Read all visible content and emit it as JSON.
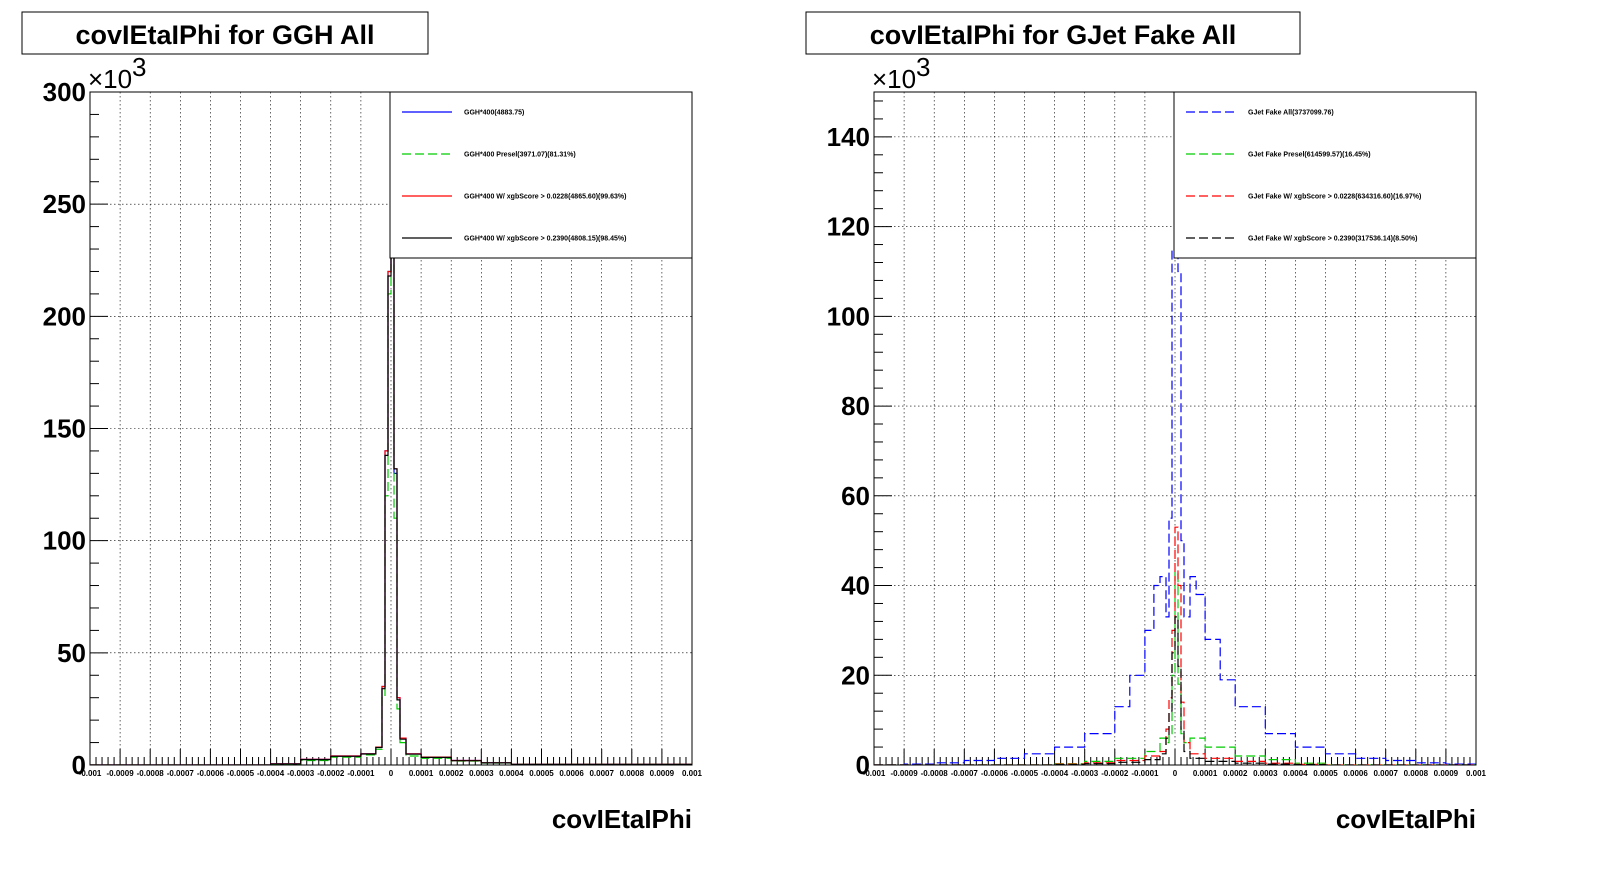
{
  "chart_data": [
    {
      "type": "line",
      "title": "covIEtaIPhi for GGH All",
      "xlabel": "covIEtaIPhi",
      "ylabel": "",
      "y_multiplier": "×10",
      "y_exponent": "3",
      "xlim": [
        -0.001,
        0.001
      ],
      "ylim": [
        0,
        300000
      ],
      "grid": true,
      "legend_position": "top-right",
      "xticks": [
        "-0.001",
        "-0.0009",
        "-0.0008",
        "-0.0007",
        "-0.0006",
        "-0.0005",
        "-0.0004",
        "-0.0003",
        "-0.0002",
        "-0.0001",
        "0",
        "0.0001",
        "0.0002",
        "0.0003",
        "0.0004",
        "0.0005",
        "0.0006",
        "0.0007",
        "0.0008",
        "0.0009",
        "0.001"
      ],
      "yticks": [
        {
          "label": "0",
          "value": 0
        },
        {
          "label": "50",
          "value": 50000
        },
        {
          "label": "100",
          "value": 100000
        },
        {
          "label": "150",
          "value": 150000
        },
        {
          "label": "200",
          "value": 200000
        },
        {
          "label": "250",
          "value": 250000
        },
        {
          "label": "300",
          "value": 300000
        }
      ],
      "series": [
        {
          "name": "GGH*400(4883.75)",
          "color": "#0000ff",
          "dashed": false,
          "x": [
            -0.001,
            -0.0005,
            -0.0004,
            -0.0003,
            -0.0002,
            -0.0001,
            -5e-05,
            -3e-05,
            -2e-05,
            -1e-05,
            0,
            1e-05,
            2e-05,
            3e-05,
            5e-05,
            0.0001,
            0.0002,
            0.0003,
            0.0004,
            0.001
          ],
          "y": [
            0,
            0,
            500,
            2500,
            4000,
            5000,
            8000,
            35000,
            140000,
            220000,
            290000,
            130000,
            30000,
            12000,
            5000,
            3500,
            2000,
            1000,
            300,
            0
          ]
        },
        {
          "name": "GGH*400 Presel(3971.07)(81.31%)",
          "color": "#00cc00",
          "dashed": true,
          "x": [
            -0.001,
            -0.0005,
            -0.0004,
            -0.0003,
            -0.0002,
            -0.0001,
            -5e-05,
            -3e-05,
            -2e-05,
            -1e-05,
            0,
            1e-05,
            2e-05,
            3e-05,
            5e-05,
            0.0001,
            0.0002,
            0.0003,
            0.0004,
            0.001
          ],
          "y": [
            0,
            0,
            400,
            2000,
            3500,
            4500,
            7000,
            30000,
            120000,
            210000,
            235000,
            110000,
            25000,
            10000,
            4000,
            3000,
            1800,
            900,
            250,
            0
          ]
        },
        {
          "name": "GGH*400 W/ xgbScore > 0.0228(4865.60)(99.63%)",
          "color": "#ff0000",
          "dashed": false,
          "x": [
            -0.001,
            -0.0005,
            -0.0004,
            -0.0003,
            -0.0002,
            -0.0001,
            -5e-05,
            -3e-05,
            -2e-05,
            -1e-05,
            0,
            1e-05,
            2e-05,
            3e-05,
            5e-05,
            0.0001,
            0.0002,
            0.0003,
            0.0004,
            0.001
          ],
          "y": [
            0,
            0,
            500,
            2500,
            4000,
            5000,
            8000,
            35000,
            140000,
            220000,
            289000,
            132000,
            30000,
            12000,
            5000,
            3500,
            2000,
            1000,
            300,
            0
          ]
        },
        {
          "name": "GGH*400 W/ xgbScore > 0.2390(4808.15)(98.45%)",
          "color": "#000000",
          "dashed": false,
          "x": [
            -0.001,
            -0.0005,
            -0.0004,
            -0.0003,
            -0.0002,
            -0.0001,
            -5e-05,
            -3e-05,
            -2e-05,
            -1e-05,
            0,
            1e-05,
            2e-05,
            3e-05,
            5e-05,
            0.0001,
            0.0002,
            0.0003,
            0.0004,
            0.001
          ],
          "y": [
            0,
            0,
            450,
            2400,
            3900,
            4900,
            7800,
            34000,
            138000,
            218000,
            285000,
            132000,
            29000,
            11500,
            4800,
            3400,
            1900,
            950,
            280,
            0
          ]
        }
      ]
    },
    {
      "type": "line",
      "title": "covIEtaIPhi for GJet Fake All",
      "xlabel": "covIEtaIPhi",
      "ylabel": "",
      "y_multiplier": "×10",
      "y_exponent": "3",
      "xlim": [
        -0.001,
        0.001
      ],
      "ylim": [
        0,
        150000
      ],
      "grid": true,
      "legend_position": "top-right",
      "xticks": [
        "-0.001",
        "-0.0009",
        "-0.0008",
        "-0.0007",
        "-0.0006",
        "-0.0005",
        "-0.0004",
        "-0.0003",
        "-0.0002",
        "-0.0001",
        "0",
        "0.0001",
        "0.0002",
        "0.0003",
        "0.0004",
        "0.0005",
        "0.0006",
        "0.0007",
        "0.0008",
        "0.0009",
        "0.001"
      ],
      "yticks": [
        {
          "label": "0",
          "value": 0
        },
        {
          "label": "20",
          "value": 20000
        },
        {
          "label": "40",
          "value": 40000
        },
        {
          "label": "60",
          "value": 60000
        },
        {
          "label": "80",
          "value": 80000
        },
        {
          "label": "100",
          "value": 100000
        },
        {
          "label": "120",
          "value": 120000
        },
        {
          "label": "140",
          "value": 140000
        }
      ],
      "series": [
        {
          "name": "GJet Fake All(3737099.76)",
          "color": "#0000ff",
          "dashed": true,
          "x": [
            -0.001,
            -0.0009,
            -0.0008,
            -0.0007,
            -0.0006,
            -0.0005,
            -0.0004,
            -0.0003,
            -0.0002,
            -0.00015,
            -0.0001,
            -7e-05,
            -5e-05,
            -3e-05,
            -2e-05,
            -1e-05,
            0,
            1e-05,
            2e-05,
            3e-05,
            5e-05,
            7e-05,
            0.0001,
            0.00015,
            0.0002,
            0.0003,
            0.0004,
            0.0005,
            0.0006,
            0.0007,
            0.0008,
            0.0009,
            0.001
          ],
          "y": [
            0,
            200,
            500,
            1000,
            1500,
            2500,
            4000,
            7000,
            13000,
            20000,
            30000,
            40000,
            42000,
            33000,
            55000,
            115000,
            142000,
            110000,
            50000,
            33000,
            42000,
            38000,
            28000,
            19000,
            13000,
            7000,
            4000,
            2500,
            1500,
            1000,
            500,
            200,
            0
          ]
        },
        {
          "name": "GJet Fake Presel(614599.57)(16.45%)",
          "color": "#00cc00",
          "dashed": true,
          "x": [
            -0.001,
            -0.0005,
            -0.0004,
            -0.0003,
            -0.0002,
            -0.0001,
            -5e-05,
            -3e-05,
            -2e-05,
            -1e-05,
            0,
            1e-05,
            2e-05,
            3e-05,
            5e-05,
            0.0001,
            0.0002,
            0.0003,
            0.0004,
            0.0005,
            0.001
          ],
          "y": [
            0,
            0,
            300,
            800,
            1500,
            3000,
            6000,
            5000,
            7000,
            20000,
            43000,
            18000,
            7000,
            5000,
            6000,
            4000,
            2000,
            1200,
            400,
            0,
            0
          ]
        },
        {
          "name": "GJet Fake W/ xgbScore > 0.0228(634316.60)(16.97%)",
          "color": "#ff0000",
          "dashed": true,
          "x": [
            -0.001,
            -0.0005,
            -0.0004,
            -0.0003,
            -0.0002,
            -0.0001,
            -5e-05,
            -3e-05,
            -2e-05,
            -1e-05,
            0,
            1e-05,
            2e-05,
            3e-05,
            5e-05,
            0.0001,
            0.0002,
            0.0003,
            0.0004,
            0.0005,
            0.001
          ],
          "y": [
            0,
            0,
            200,
            500,
            1000,
            2000,
            3000,
            8000,
            15000,
            30000,
            53000,
            40000,
            14000,
            5000,
            2500,
            1500,
            800,
            400,
            150,
            0,
            0
          ]
        },
        {
          "name": "GJet Fake W/ xgbScore > 0.2390(317536.14)(8.50%)",
          "color": "#000000",
          "dashed": true,
          "x": [
            -0.001,
            -0.0005,
            -0.0004,
            -0.0003,
            -0.0002,
            -0.0001,
            -5e-05,
            -3e-05,
            -2e-05,
            -1e-05,
            0,
            1e-05,
            2e-05,
            3e-05,
            5e-05,
            0.0001,
            0.0002,
            0.0003,
            0.0004,
            0.0005,
            0.001
          ],
          "y": [
            0,
            0,
            100,
            300,
            600,
            1200,
            2500,
            6000,
            12000,
            25000,
            33000,
            22000,
            8000,
            3000,
            1500,
            800,
            400,
            200,
            80,
            0,
            0
          ]
        }
      ]
    }
  ]
}
